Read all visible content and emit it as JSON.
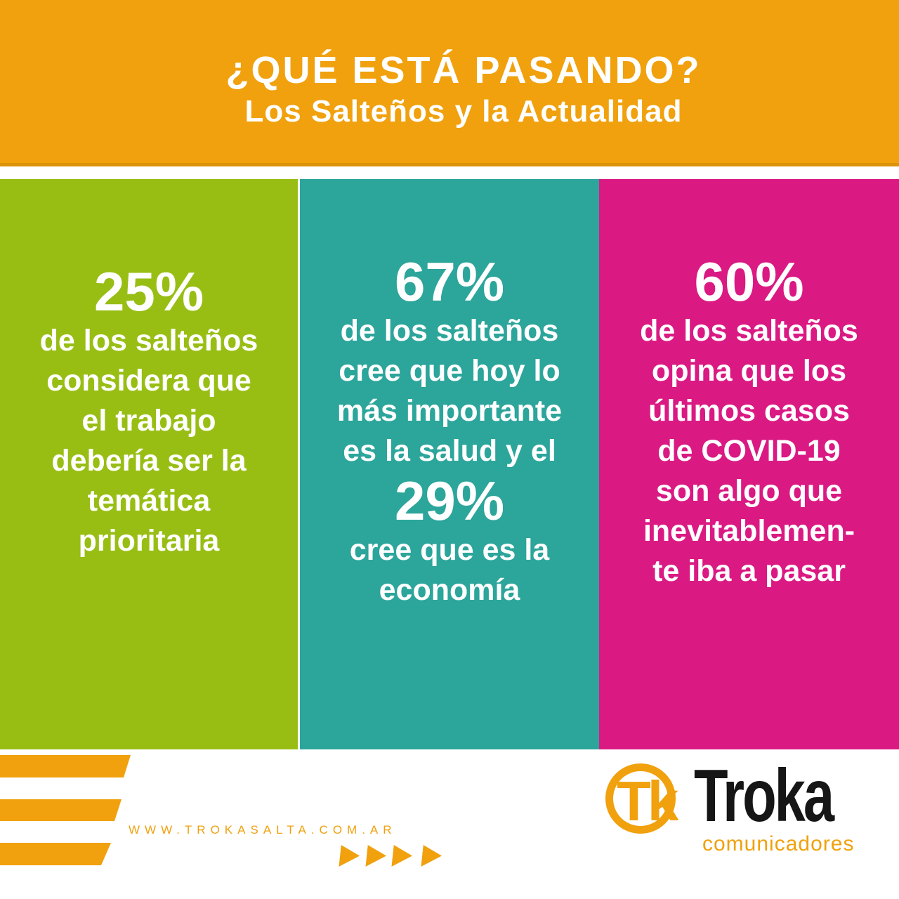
{
  "colors": {
    "orange": "#F0A10D",
    "orange_dark": "#DC930A",
    "green": "#98BE14",
    "teal": "#2CA59B",
    "pink": "#DA1983",
    "logo_black": "#161616",
    "text_white": "#FFFFFF"
  },
  "header": {
    "title": "¿QUÉ ESTÁ PASANDO?",
    "subtitle": "Los Salteños y la Actualidad"
  },
  "panels": [
    {
      "color_name": "green",
      "stat": "25%",
      "lines": [
        "de los salteños",
        "considera que",
        "el trabajo",
        "debería ser la",
        "temática",
        "prioritaria"
      ]
    },
    {
      "color_name": "teal",
      "stat": "67%",
      "lines": [
        "de los salteños",
        "cree que hoy lo",
        "más importante",
        "es la salud y el"
      ],
      "stat2": "29%",
      "lines2": [
        "cree que es la",
        "economía"
      ]
    },
    {
      "color_name": "pink",
      "stat": "60%",
      "lines": [
        "de los salteños",
        "opina que los",
        "últimos casos",
        "de COVID-19",
        "son algo que",
        "inevitablemen-",
        "te iba a pasar"
      ]
    }
  ],
  "footer": {
    "website": "WWW.TROKASALTA.COM.AR",
    "logo": {
      "monogram": "Tk",
      "brand": "Troka",
      "tagline": "comunicadores"
    }
  },
  "chart_data": {
    "type": "table",
    "title": "¿QUÉ ESTÁ PASANDO? — Los Salteños y la Actualidad",
    "columns": [
      "percentage",
      "statement"
    ],
    "rows": [
      [
        "25%",
        "de los salteños considera que el trabajo debería ser la temática prioritaria"
      ],
      [
        "67%",
        "de los salteños cree que hoy lo más importante es la salud"
      ],
      [
        "29%",
        "cree que es la economía"
      ],
      [
        "60%",
        "de los salteños opina que los últimos casos de COVID-19 son algo que inevitablemente iba a pasar"
      ]
    ],
    "legend_position": "none",
    "grid": false
  }
}
